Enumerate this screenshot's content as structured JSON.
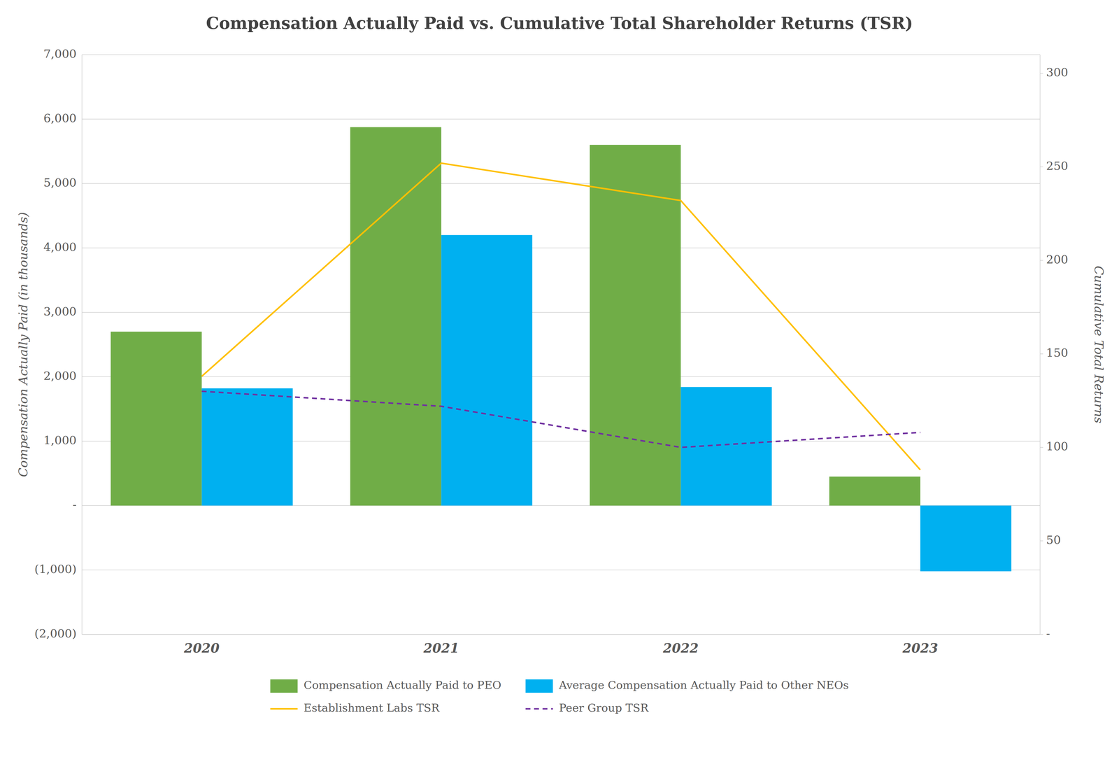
{
  "chart_data": {
    "type": "bar",
    "title": "Compensation Actually Paid vs. Cumulative Total Shareholder Returns (TSR)",
    "categories": [
      "2020",
      "2021",
      "2022",
      "2023"
    ],
    "series": [
      {
        "name": "Compensation Actually Paid to PEO",
        "color": "#70AD47",
        "values": [
          2700,
          5875,
          5600,
          450
        ]
      },
      {
        "name": "Average Compensation Actually Paid to Other NEOs",
        "color": "#00B0F0",
        "values": [
          1820,
          4200,
          1840,
          -1020
        ]
      },
      {
        "name": "Establishment Labs TSR",
        "type": "line",
        "axis": "y2",
        "color": "#FFC000",
        "line_style": "solid",
        "values": [
          138,
          252,
          232,
          88
        ]
      },
      {
        "name": "Peer Group TSR",
        "type": "line",
        "axis": "y2",
        "color": "#7030A0",
        "line_style": "dashed",
        "values": [
          130,
          122,
          100,
          108
        ]
      }
    ],
    "ylabel": "Compensation Actually Paid (in thousands)",
    "y2label": "Cumulative Total Returns",
    "ylim": [
      -2000,
      7000
    ],
    "yticks": [
      {
        "value": -2000,
        "label": "(2,000)"
      },
      {
        "value": -1000,
        "label": "(1,000)"
      },
      {
        "value": 0,
        "label": "-"
      },
      {
        "value": 1000,
        "label": "1,000"
      },
      {
        "value": 2000,
        "label": "2,000"
      },
      {
        "value": 3000,
        "label": "3,000"
      },
      {
        "value": 4000,
        "label": "4,000"
      },
      {
        "value": 5000,
        "label": "5,000"
      },
      {
        "value": 6000,
        "label": "6,000"
      },
      {
        "value": 7000,
        "label": "7,000"
      }
    ],
    "y2lim": [
      0,
      310
    ],
    "y2ticks": [
      {
        "value": 0,
        "label": "-"
      },
      50,
      100,
      150,
      200,
      250,
      300
    ],
    "grid": true,
    "legend": "bottom"
  }
}
